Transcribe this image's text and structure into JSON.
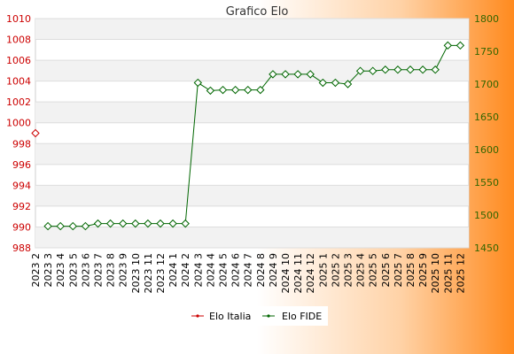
{
  "chart_data": {
    "type": "line",
    "title": "Grafico Elo",
    "categories": [
      "2023 2",
      "2023 3",
      "2023 4",
      "2023 5",
      "2023 6",
      "2023 7",
      "2023 8",
      "2023 9",
      "2023 10",
      "2023 11",
      "2023 12",
      "2024 1",
      "2024 2",
      "2024 3",
      "2024 4",
      "2024 5",
      "2024 6",
      "2024 7",
      "2024 8",
      "2024 9",
      "2024 10",
      "2024 11",
      "2024 12",
      "2025 1",
      "2025 2",
      "2025 3",
      "2025 4",
      "2025 5",
      "2025 6",
      "2025 7",
      "2025 8",
      "2025 9",
      "2025 10",
      "2025 11",
      "2025 12"
    ],
    "left_axis": {
      "ylim": [
        988,
        1010
      ],
      "ticks": [
        "988",
        "990",
        "992",
        "994",
        "996",
        "998",
        "1000",
        "1002",
        "1004",
        "1006",
        "1008",
        "1010"
      ],
      "color": "#cc0000"
    },
    "right_axis": {
      "ylim": [
        1450,
        1800
      ],
      "ticks": [
        "1450",
        "1500",
        "1550",
        "1600",
        "1650",
        "1700",
        "1750",
        "1800"
      ],
      "color": "#336600"
    },
    "grid": true,
    "legend_placement": "bottom-center",
    "series": [
      {
        "name": "Elo Italia",
        "axis": "left",
        "color": "#cc0000",
        "values": [
          999,
          null,
          null,
          null,
          null,
          null,
          null,
          null,
          null,
          null,
          null,
          null,
          null,
          null,
          null,
          null,
          null,
          null,
          null,
          null,
          null,
          null,
          null,
          null,
          null,
          null,
          null,
          null,
          null,
          null,
          null,
          null,
          null,
          null,
          null
        ]
      },
      {
        "name": "Elo FIDE",
        "axis": "right",
        "color": "#006600",
        "values": [
          null,
          1483,
          1483,
          1483,
          1483,
          1487,
          1487,
          1487,
          1487,
          1487,
          1487,
          1487,
          1487,
          1702,
          1690,
          1691,
          1691,
          1691,
          1691,
          1715,
          1715,
          1715,
          1715,
          1702,
          1702,
          1700,
          1720,
          1720,
          1722,
          1722,
          1722,
          1722,
          1722,
          1759,
          1759
        ]
      }
    ]
  }
}
